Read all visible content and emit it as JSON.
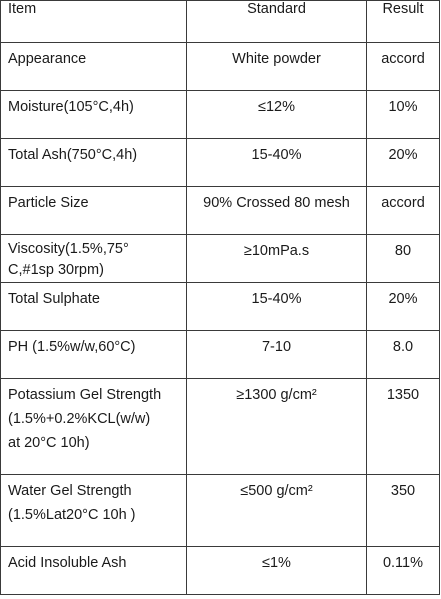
{
  "header": {
    "item": "Item",
    "standard": "Standard",
    "result": "Result"
  },
  "rows": [
    {
      "item": "Appearance",
      "standard": "White powder",
      "result": "accord"
    },
    {
      "item": "Moisture(105°C,4h)",
      "standard": "≤12%",
      "result": "10%"
    },
    {
      "item": "Total Ash(750°C,4h)",
      "standard": "15-40%",
      "result": "20%"
    },
    {
      "item": "Particle Size",
      "standard": "90% Crossed 80 mesh",
      "result": "accord"
    },
    {
      "item_lines": [
        "Viscosity(1.5%,75°",
        "C,#1sp 30rpm)"
      ],
      "standard": "≥10mPa.s",
      "result": "80"
    },
    {
      "item": "Total Sulphate",
      "standard": "15-40%",
      "result": "20%"
    },
    {
      "item": "PH (1.5%w/w,60°C)",
      "standard": "7-10",
      "result": "8.0"
    },
    {
      "item_lines": [
        "Potassium Gel Strength",
        "(1.5%+0.2%KCL(w/w)",
        "at 20°C 10h)"
      ],
      "standard": "≥1300 g/cm²",
      "result": "1350"
    },
    {
      "item_lines": [
        "Water Gel Strength",
        "(1.5%Lat20°C 10h )"
      ],
      "standard": "≤500 g/cm²",
      "result": "350"
    },
    {
      "item": "Acid Insoluble Ash",
      "standard": "≤1%",
      "result": "0.11%"
    }
  ]
}
